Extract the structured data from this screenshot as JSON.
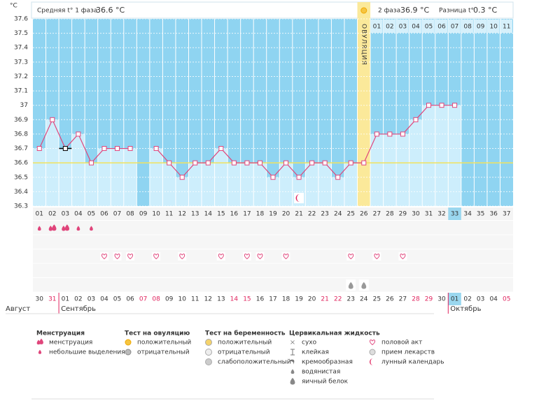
{
  "header": {
    "unit": "°C",
    "phase1_label": "Средняя t° 1 фаза",
    "phase1_value": "36.6 °C",
    "phase2_label": "2 фаза",
    "phase2_value": "36.9 °C",
    "diff_label": "Разница t°",
    "diff_value": "0.3 °C"
  },
  "chart_data": {
    "type": "line",
    "categories": [
      "01",
      "02",
      "03",
      "04",
      "05",
      "06",
      "07",
      "08",
      "09",
      "10",
      "11",
      "12",
      "13",
      "14",
      "15",
      "16",
      "17",
      "18",
      "19",
      "20",
      "21",
      "22",
      "23",
      "24",
      "25",
      "26",
      "27",
      "28",
      "29",
      "30",
      "31",
      "32",
      "33",
      "34",
      "35",
      "36",
      "37"
    ],
    "values": [
      36.7,
      36.9,
      36.7,
      36.8,
      36.6,
      36.7,
      36.7,
      36.7,
      null,
      36.7,
      36.6,
      36.5,
      36.6,
      36.6,
      36.7,
      36.6,
      36.6,
      36.6,
      36.5,
      36.6,
      36.5,
      36.6,
      36.6,
      36.5,
      36.6,
      36.6,
      36.8,
      36.8,
      36.8,
      36.9,
      37.0,
      37.0,
      37.0,
      null,
      null,
      null,
      null
    ],
    "ylim": [
      36.3,
      37.6
    ],
    "yticks": [
      37.6,
      37.5,
      37.4,
      37.3,
      37.2,
      37.1,
      37,
      36.9,
      36.8,
      36.7,
      36.6,
      36.5,
      36.4,
      36.3
    ],
    "color": "#e0457b",
    "cover_line": 36.6,
    "ovulation_day": 26,
    "ovulation_label": "ОВУЛЯЦИЯ",
    "excluded_days": [
      3
    ],
    "current_day": 33,
    "phase2_start": 27,
    "phase2_days": [
      "01",
      "02",
      "03",
      "04",
      "05",
      "06",
      "07",
      "08",
      "09",
      "10",
      "11"
    ],
    "symbols": {
      "menstruation": [
        2,
        3
      ],
      "spotting": [
        1,
        4,
        5
      ],
      "intercourse": [
        6,
        7,
        8,
        10,
        12,
        15,
        17,
        18,
        20,
        25,
        27,
        29
      ],
      "watery": [
        25,
        26
      ],
      "lunar": [
        21
      ]
    },
    "dates": [
      "30",
      "31",
      "01",
      "02",
      "03",
      "04",
      "05",
      "06",
      "07",
      "08",
      "09",
      "10",
      "11",
      "12",
      "13",
      "14",
      "15",
      "16",
      "17",
      "18",
      "19",
      "20",
      "21",
      "22",
      "23",
      "24",
      "25",
      "26",
      "27",
      "28",
      "29",
      "30",
      "01",
      "02",
      "03",
      "04",
      "05"
    ],
    "red_dates": [
      1,
      8,
      9,
      15,
      16,
      22,
      23,
      29,
      30,
      36
    ],
    "months": [
      {
        "name": "Август",
        "column": 1
      },
      {
        "name": "Сентябрь",
        "column": 3
      },
      {
        "name": "Октябрь",
        "column": 33
      }
    ]
  },
  "legend": {
    "groups": [
      {
        "title": "Менструация",
        "items": [
          "менструация",
          "небольшие выделения"
        ]
      },
      {
        "title": "Тест на овуляцию",
        "items": [
          "положительный",
          "отрицательный"
        ]
      },
      {
        "title": "Тест на беременность",
        "items": [
          "положительный",
          "отрицательный",
          "слабоположительный"
        ]
      },
      {
        "title": "Цервикальная жидкость",
        "items": [
          "сухо",
          "клейкая",
          "кремообразная",
          "водянистая",
          "яичный белок"
        ]
      },
      {
        "items": [
          "половой акт",
          "прием лекарств",
          "лунный календарь"
        ]
      }
    ]
  }
}
